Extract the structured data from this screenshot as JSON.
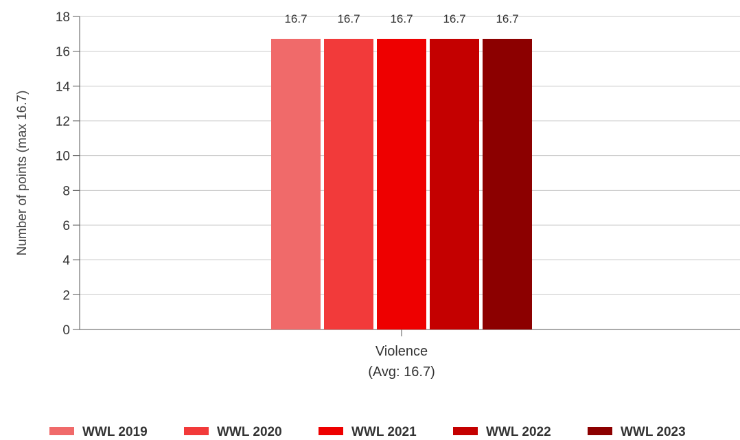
{
  "chart_data": {
    "type": "bar",
    "categories": [
      "Violence"
    ],
    "category_sublabels": [
      "(Avg: 16.7)"
    ],
    "series": [
      {
        "name": "WWL 2019",
        "values": [
          16.7
        ],
        "color": "#f06a6a"
      },
      {
        "name": "WWL 2020",
        "values": [
          16.7
        ],
        "color": "#f23a3a"
      },
      {
        "name": "WWL 2021",
        "values": [
          16.7
        ],
        "color": "#ee0000"
      },
      {
        "name": "WWL 2022",
        "values": [
          16.7
        ],
        "color": "#c40000"
      },
      {
        "name": "WWL 2023",
        "values": [
          16.7
        ],
        "color": "#8c0000"
      }
    ],
    "data_labels": [
      "16.7",
      "16.7",
      "16.7",
      "16.7",
      "16.7"
    ],
    "ylabel": "Number of points (max 16.7)",
    "xlabel": "",
    "ylim": [
      0,
      18
    ],
    "yticks": [
      0,
      2,
      4,
      6,
      8,
      10,
      12,
      14,
      16,
      18
    ],
    "grid": true,
    "legend": "bottom"
  }
}
